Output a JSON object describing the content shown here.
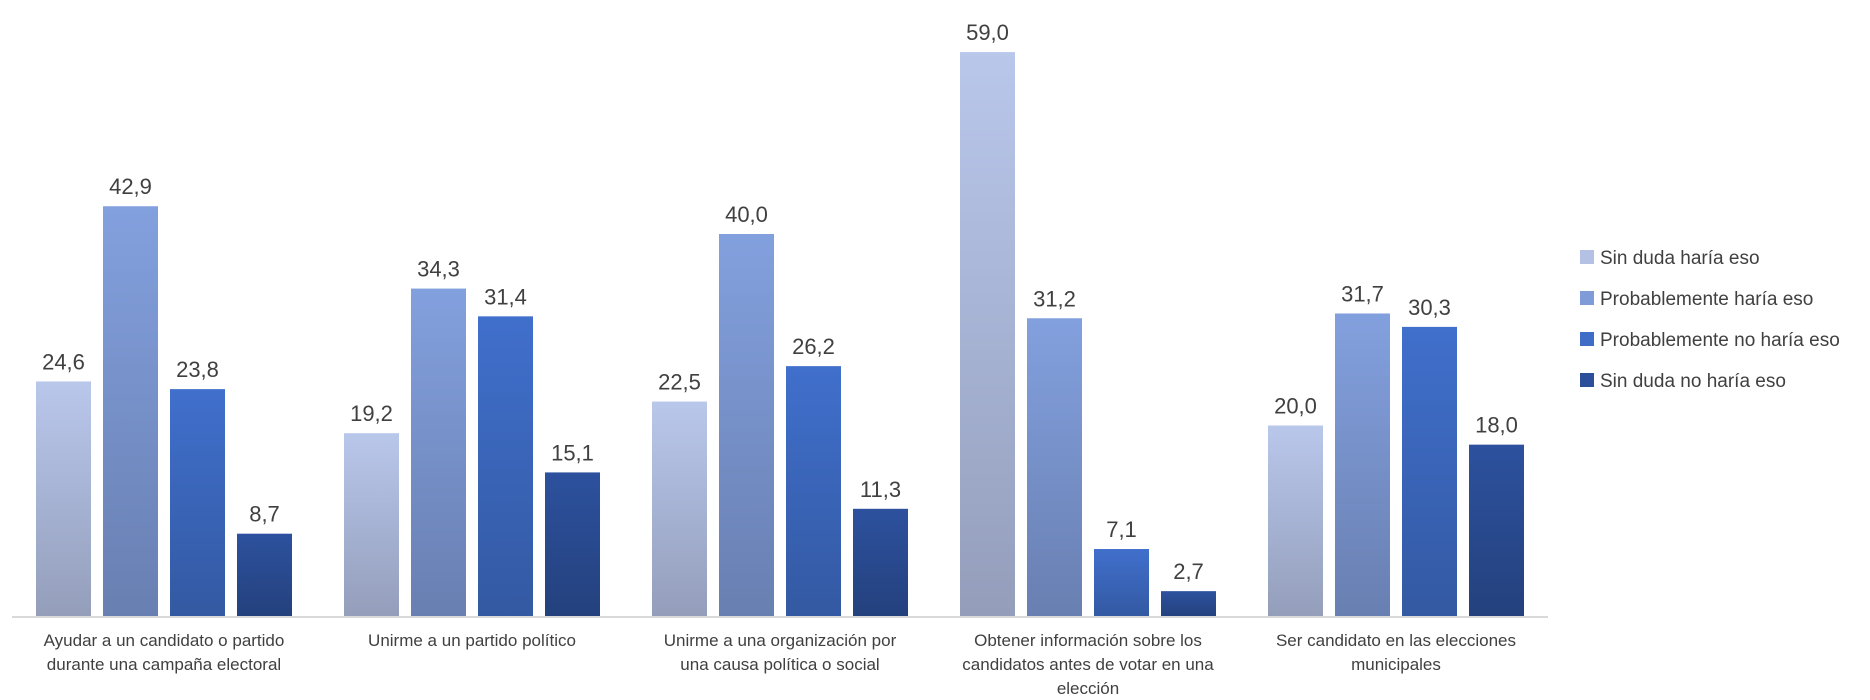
{
  "chart_data": {
    "type": "bar",
    "title": "",
    "xlabel": "",
    "ylabel": "",
    "ylim": [
      0,
      60
    ],
    "grid": false,
    "legend_position": "right",
    "categories": [
      [
        "Ayudar a un candidato o partido",
        "durante una campaña electoral"
      ],
      [
        "Unirme a un partido político"
      ],
      [
        "Unirme a una organización por",
        "una causa política o social"
      ],
      [
        "Obtener información sobre los",
        "candidatos antes de votar en una",
        "elección"
      ],
      [
        "Ser candidato en las elecciones",
        "municipales"
      ]
    ],
    "series": [
      {
        "name": "Sin duda haría eso",
        "color": "#b4c1e4",
        "values": [
          24.6,
          19.2,
          22.5,
          59.0,
          20.0
        ],
        "labels": [
          "24,6",
          "19,2",
          "22,5",
          "59,0",
          "20,0"
        ]
      },
      {
        "name": "Probablemente haría eso",
        "color": "#7f9bd8",
        "values": [
          42.9,
          34.3,
          40.0,
          31.2,
          31.7
        ],
        "labels": [
          "42,9",
          "34,3",
          "40,0",
          "31,2",
          "31,7"
        ]
      },
      {
        "name": "Probablemente no haría eso",
        "color": "#3e6cc6",
        "values": [
          23.8,
          31.4,
          26.2,
          7.1,
          30.3
        ],
        "labels": [
          "23,8",
          "31,4",
          "26,2",
          "7,1",
          "30,3"
        ]
      },
      {
        "name": "Sin duda no haría eso",
        "color": "#2c4f99",
        "values": [
          8.7,
          15.1,
          11.3,
          2.7,
          18.0
        ],
        "labels": [
          "8,7",
          "15,1",
          "11,3",
          "2,7",
          "18,0"
        ]
      }
    ]
  }
}
